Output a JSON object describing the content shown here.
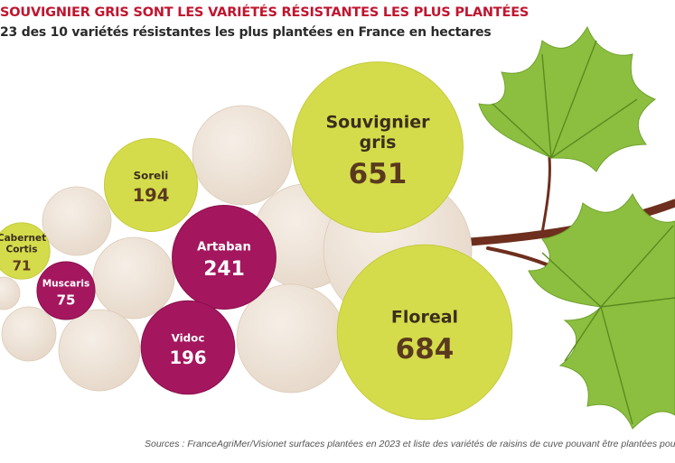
{
  "chart_data": {
    "type": "bubble",
    "title": "SOUVIGNIER GRIS SONT LES VARIÉTÉS RÉSISTANTES LES PLUS PLANTÉES",
    "subtitle": "23 des 10 variétés résistantes les plus plantées en France en hectares",
    "unit": "hectares",
    "points": [
      {
        "name": "Floreal",
        "name_lines": [
          "Floreal"
        ],
        "value": 684,
        "color": "#d5dc4b"
      },
      {
        "name": "Souvignier gris",
        "name_lines": [
          "Souvignier",
          "gris"
        ],
        "value": 651,
        "color": "#d5dc4b"
      },
      {
        "name": "Artaban",
        "name_lines": [
          "Artaban"
        ],
        "value": 241,
        "color": "#a4175e"
      },
      {
        "name": "Vidoc",
        "name_lines": [
          "Vidoc"
        ],
        "value": 196,
        "color": "#a4175e"
      },
      {
        "name": "Soreli",
        "name_lines": [
          "Soreli"
        ],
        "value": 194,
        "color": "#d5dc4b"
      },
      {
        "name": "Muscaris",
        "name_lines": [
          "Muscaris"
        ],
        "value": 75,
        "color": "#a4175e"
      },
      {
        "name": "Cabernet Cortis",
        "name_lines": [
          "Cabernet",
          "Cortis"
        ],
        "value": 71,
        "color": "#d5dc4b"
      }
    ]
  },
  "source": "Sources : FranceAgriMer/Visionet surfaces plantées en 2023 et liste des variétés de raisins de cuve pouvant être plantées pour prod",
  "colors": {
    "title": "#c0152f",
    "green_grape": "#d5dc4b",
    "purple_grape": "#a4175e",
    "pale_grape": "#ede2d6",
    "leaf": "#8cbf3f",
    "stem": "#6e2f1e",
    "value_dark": "#5a3a1e",
    "label_on_purple": "#ffffff"
  }
}
